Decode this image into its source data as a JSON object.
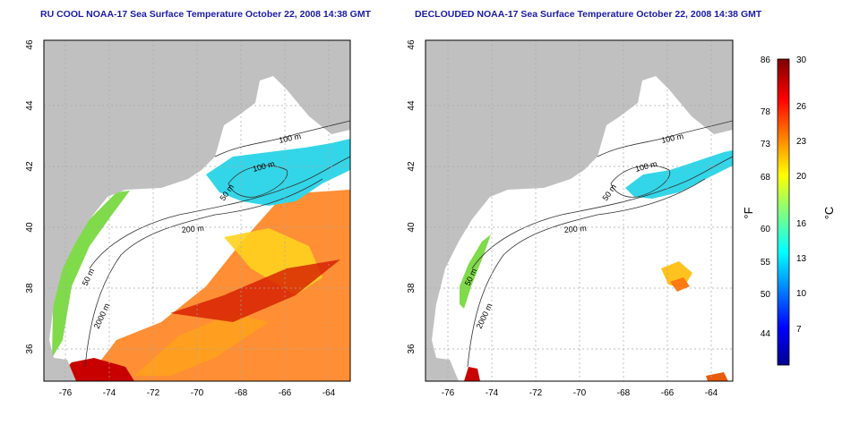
{
  "titles": {
    "left": "RU COOL NOAA-17 Sea Surface Temperature October 22, 2008 14:38 GMT",
    "right": "DECLOUDED NOAA-17 Sea Surface Temperature October 22, 2008 14:38 GMT"
  },
  "map": {
    "xticks": [
      "-76",
      "-74",
      "-72",
      "-70",
      "-68",
      "-66",
      "-64"
    ],
    "yticks": [
      "46",
      "44",
      "42",
      "40",
      "38",
      "36"
    ],
    "contours": [
      "100 m",
      "100 m",
      "50 m",
      "200 m",
      "50 m",
      "2000 m"
    ],
    "colors": {
      "land": "#c0c0c0",
      "ocean": "#ffffff",
      "grid": "#a8a8a8"
    }
  },
  "colorbar": {
    "f_ticks": [
      "86",
      "78",
      "73",
      "68",
      "60",
      "55",
      "50",
      "44"
    ],
    "c_ticks": [
      "30",
      "26",
      "23",
      "20",
      "16",
      "13",
      "10",
      "7"
    ],
    "f_label": "°F",
    "c_label": "°C"
  }
}
